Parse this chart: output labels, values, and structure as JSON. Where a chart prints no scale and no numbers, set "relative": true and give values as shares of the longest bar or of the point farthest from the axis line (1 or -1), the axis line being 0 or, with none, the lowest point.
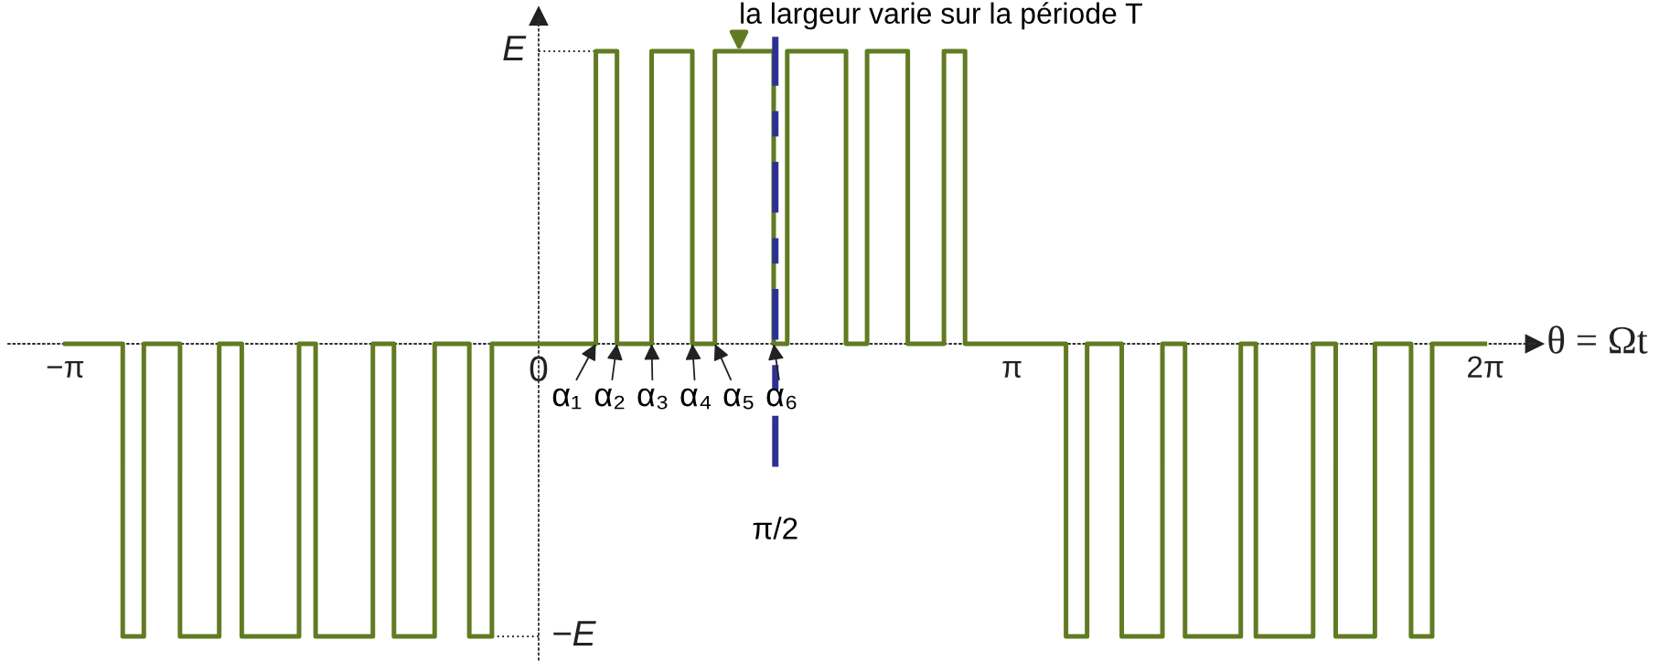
{
  "chart_data": {
    "type": "step",
    "relative": true,
    "xlabel": "θ = Ωt",
    "xlim": [
      -3.52,
      6.61
    ],
    "xticks": [
      {
        "value": -3.1416,
        "label": "−π"
      },
      0,
      {
        "value": 3.1416,
        "label": "π"
      },
      {
        "value": 6.2832,
        "label": "2π"
      }
    ],
    "series": [
      {
        "color": "#617b22",
        "x": [
          -3.14,
          -2.76,
          -2.62,
          -2.38,
          -2.12,
          -1.97,
          -1.59,
          -1.48,
          -1.1,
          -0.96,
          -0.69,
          -0.46,
          -0.31,
          0.38,
          0.52,
          0.75,
          1.02,
          1.17,
          1.56,
          1.65,
          2.04,
          2.18,
          2.45,
          2.69,
          2.83,
          3.5,
          3.64,
          3.87,
          4.14,
          4.29,
          4.66,
          4.76,
          5.14,
          5.29,
          5.55,
          5.79,
          5.93,
          6.28
        ],
        "values": [
          0,
          -1,
          0,
          -1,
          0,
          -1,
          0,
          -1,
          0,
          -1,
          0,
          -1,
          0,
          1,
          0,
          1,
          0,
          1,
          0,
          1,
          0,
          1,
          0,
          1,
          0,
          -1,
          0,
          -1,
          0,
          -1,
          0,
          -1,
          0,
          -1,
          0,
          -1,
          0,
          0
        ]
      }
    ],
    "ref_lines": [
      {
        "axis": "x",
        "value": 1.5708,
        "label": "π/2",
        "color": "#2e3192",
        "line_style": "dashed"
      },
      {
        "axis": "y",
        "value": 1,
        "label": "E",
        "line_style": "dotted"
      },
      {
        "axis": "y",
        "value": -1,
        "label": "−E",
        "line_style": "dotted"
      }
    ],
    "annotations": [
      {
        "text": "α₁",
        "x": 0.38,
        "y": 0
      },
      {
        "text": "α₂",
        "x": 0.52,
        "y": 0
      },
      {
        "text": "α₃",
        "x": 0.75,
        "y": 0
      },
      {
        "text": "α₄",
        "x": 1.02,
        "y": 0
      },
      {
        "text": "α₅",
        "x": 1.17,
        "y": 0
      },
      {
        "text": "α₆",
        "x": 1.56,
        "y": 0
      },
      {
        "text": "la largeur varie sur la période T",
        "x": 1.33,
        "y": 1
      }
    ]
  }
}
